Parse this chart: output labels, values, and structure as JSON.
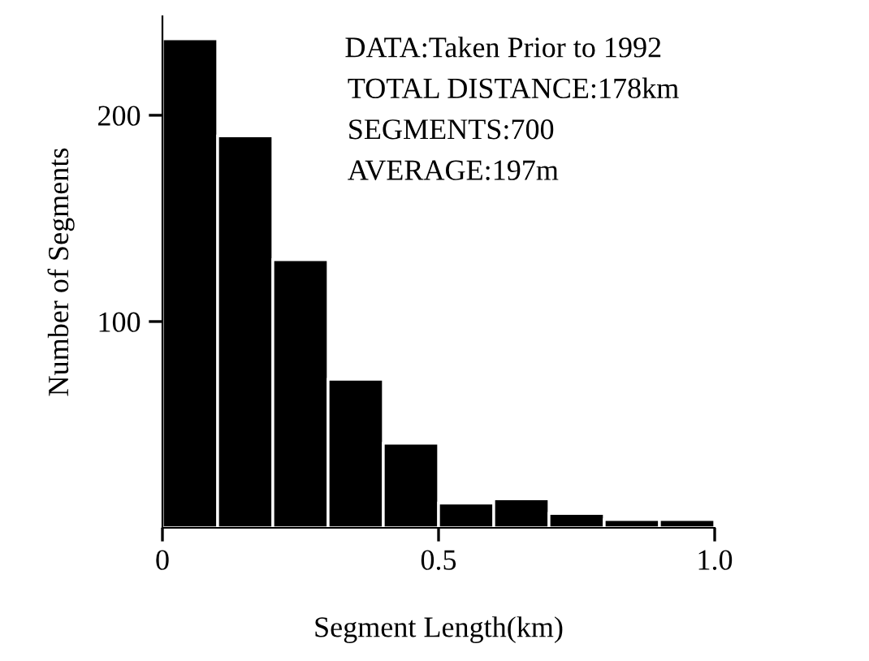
{
  "chart_data": {
    "type": "histogram",
    "xlabel": "Segment Length(km)",
    "ylabel": "Number of Segments",
    "bins": [
      0,
      0.1,
      0.2,
      0.3,
      0.4,
      0.5,
      0.6,
      0.7,
      0.8,
      0.9,
      1.0
    ],
    "values": [
      237,
      190,
      130,
      72,
      41,
      12,
      14,
      7,
      4,
      4
    ],
    "color": "#000000",
    "xlim": [
      0,
      1.0
    ],
    "ylim": [
      0,
      248
    ],
    "xticks": [
      0,
      0.5,
      {
        "value": 1.0,
        "label": "1.0"
      }
    ],
    "yticks": [
      100,
      200
    ],
    "grid": false,
    "legend": false,
    "annotations": [
      "DATA:Taken Prior to 1992",
      "TOTAL DISTANCE:178km",
      "SEGMENTS:700",
      "AVERAGE:197m"
    ]
  }
}
